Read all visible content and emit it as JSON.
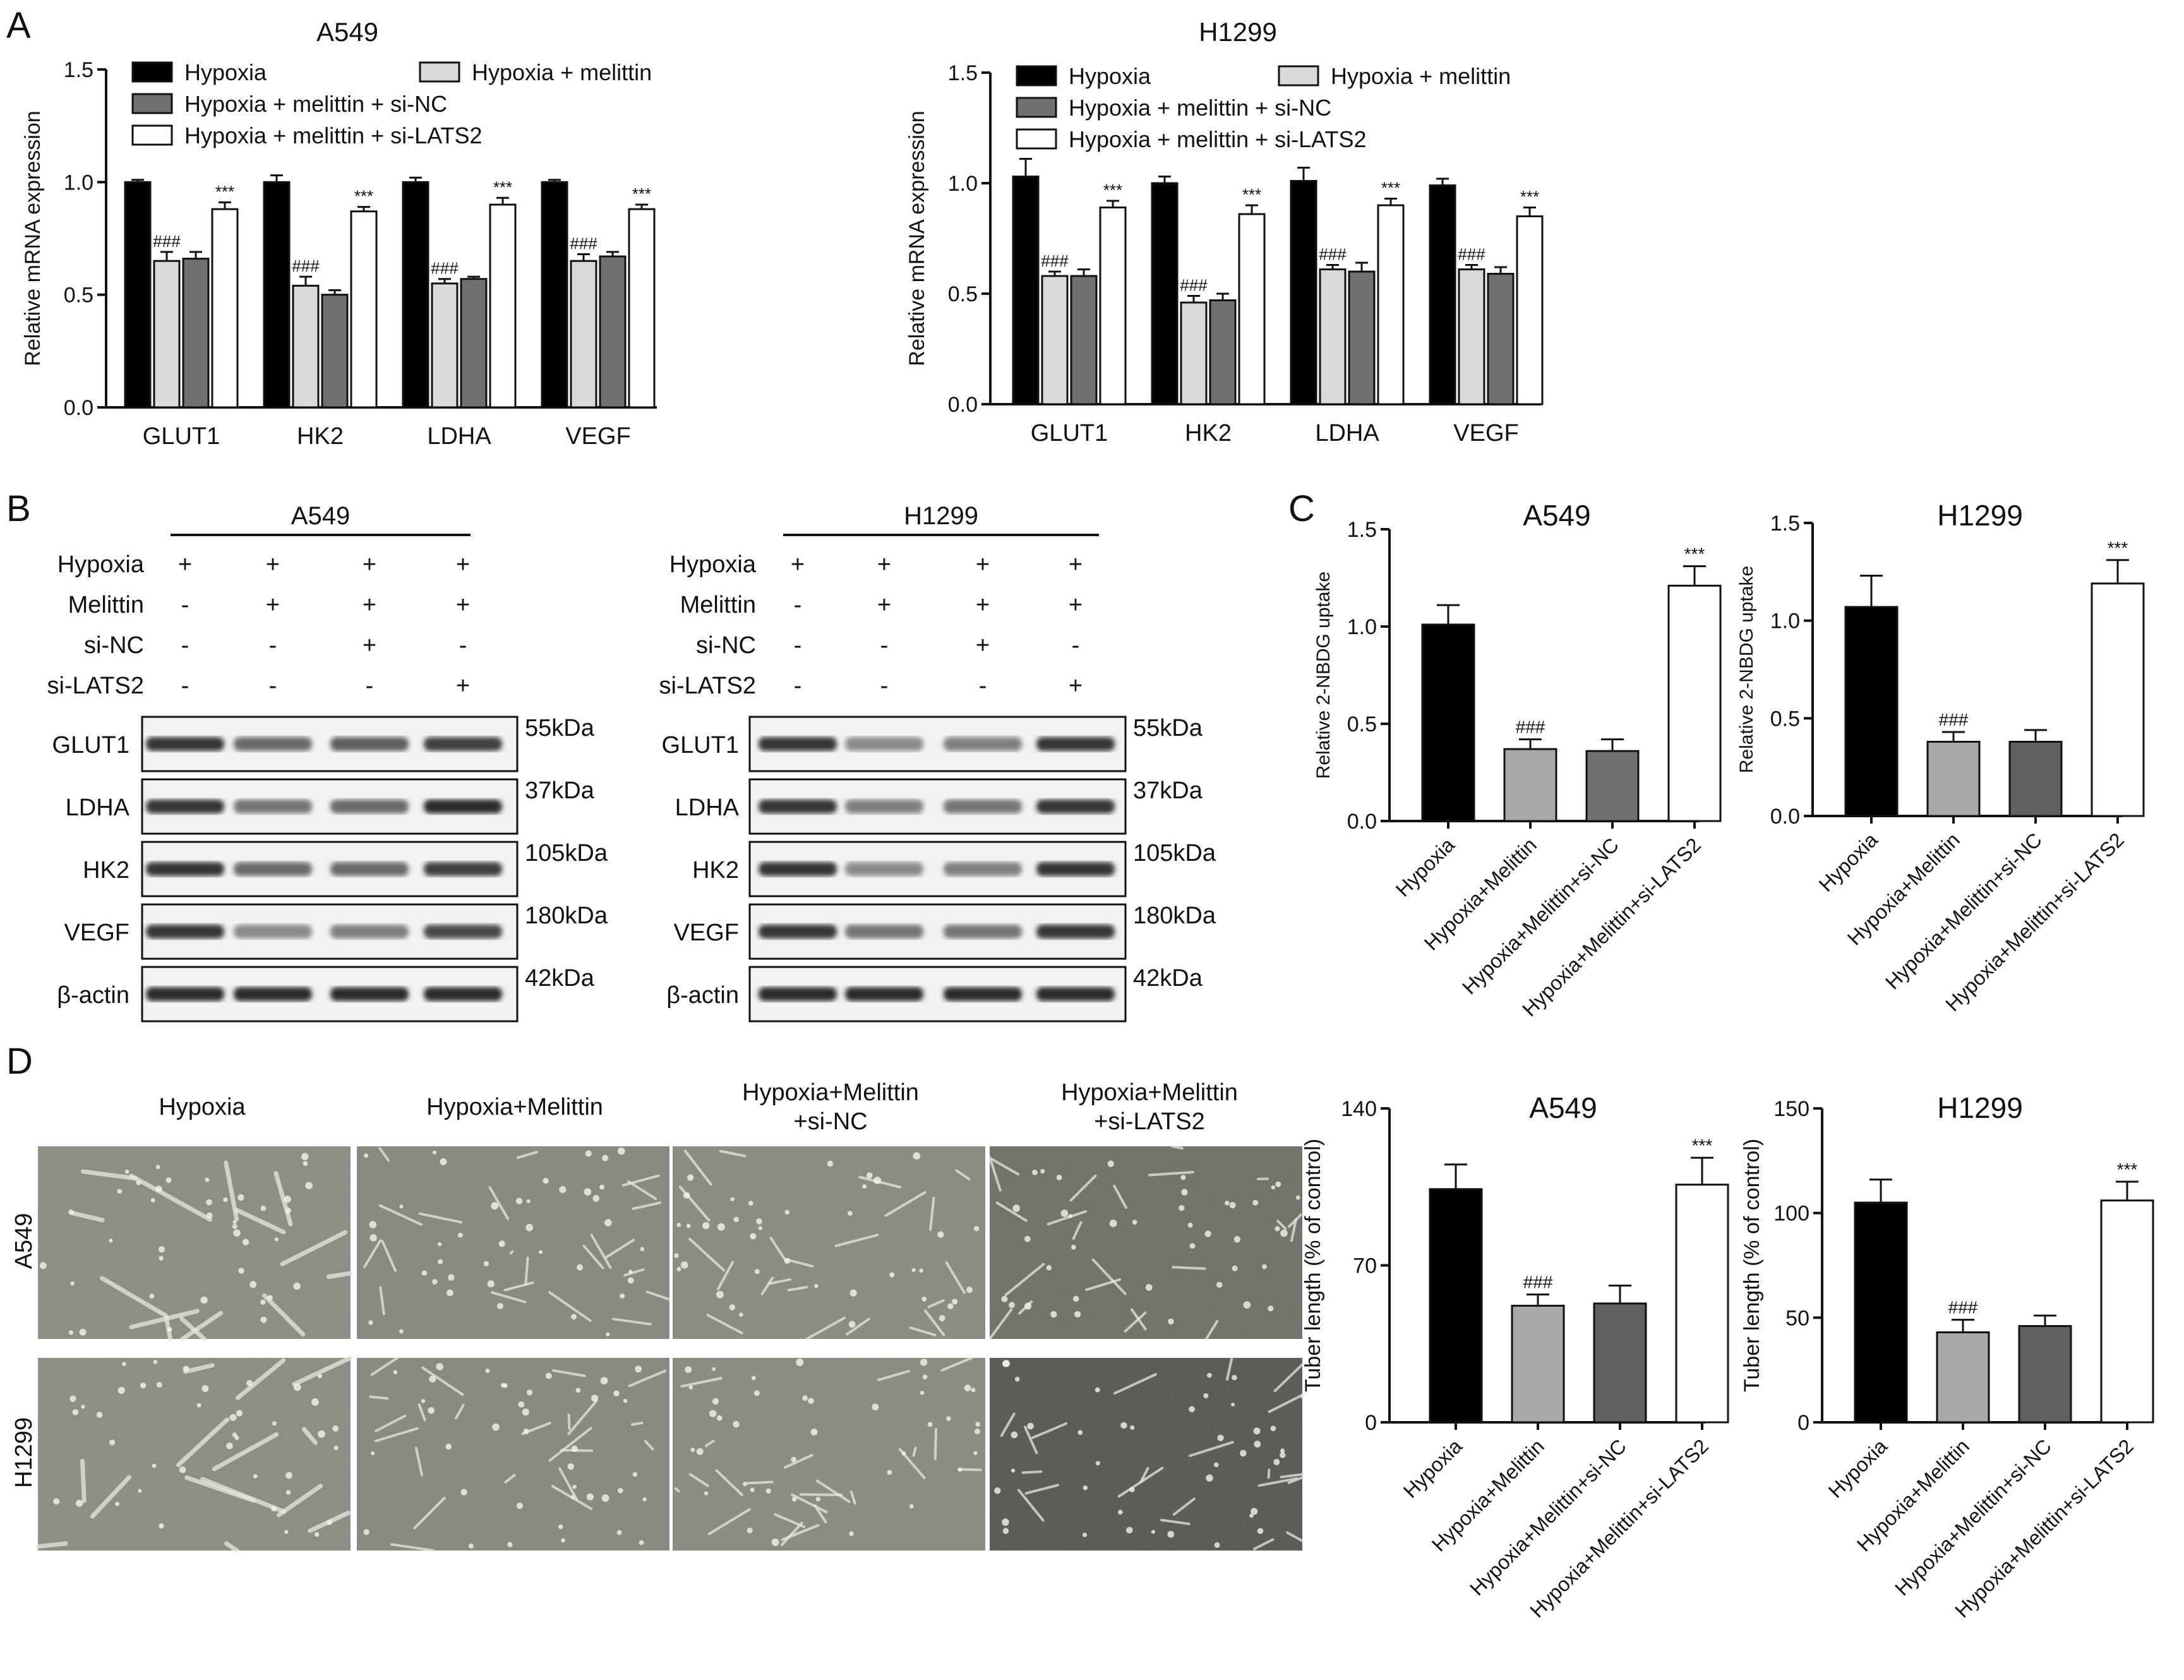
{
  "panel_letters": {
    "a": "A",
    "b": "B",
    "c": "C",
    "d": "D"
  },
  "colors": {
    "black": "#000000",
    "light_gray": "#d9d9d9",
    "mid_gray": "#a8a8a8",
    "dark_gray": "#707070",
    "dark_gray2": "#606060",
    "white": "#ffffff"
  },
  "chart_data": [
    {
      "id": "A_A549",
      "type": "bar",
      "title": "A549",
      "xlabel": "",
      "ylabel": "Relative mRNA expression",
      "ylim": [
        0,
        1.5
      ],
      "yticks": [
        "0.0",
        "0.5",
        "1.0",
        "1.5"
      ],
      "categories": [
        "GLUT1",
        "HK2",
        "LDHA",
        "VEGF"
      ],
      "legend": [
        "Hypoxia",
        "Hypoxia + melittin",
        "Hypoxia + melittin + si-NC",
        "Hypoxia + melittin + si-LATS2"
      ],
      "series": [
        {
          "name": "Hypoxia",
          "color": "#000000",
          "values": [
            1.0,
            1.0,
            1.0,
            1.0
          ],
          "errors": [
            0.01,
            0.03,
            0.02,
            0.01
          ]
        },
        {
          "name": "Hypoxia + melittin",
          "color": "#d9d9d9",
          "values": [
            0.65,
            0.54,
            0.55,
            0.65
          ],
          "errors": [
            0.04,
            0.04,
            0.02,
            0.03
          ]
        },
        {
          "name": "Hypoxia + melittin + si-NC",
          "color": "#707070",
          "values": [
            0.66,
            0.5,
            0.57,
            0.67
          ],
          "errors": [
            0.03,
            0.02,
            0.01,
            0.02
          ]
        },
        {
          "name": "Hypoxia + melittin + si-LATS2",
          "color": "#ffffff",
          "values": [
            0.88,
            0.87,
            0.9,
            0.88
          ],
          "errors": [
            0.03,
            0.02,
            0.03,
            0.02
          ]
        }
      ],
      "annotations": [
        {
          "series": 1,
          "labels": [
            "###",
            "###",
            "###",
            "###"
          ]
        },
        {
          "series": 3,
          "labels": [
            "***",
            "***",
            "***",
            "***"
          ]
        }
      ]
    },
    {
      "id": "A_H1299",
      "type": "bar",
      "title": "H1299",
      "xlabel": "",
      "ylabel": "Relative mRNA expression",
      "ylim": [
        0,
        1.5
      ],
      "yticks": [
        "0.0",
        "0.5",
        "1.0",
        "1.5"
      ],
      "categories": [
        "GLUT1",
        "HK2",
        "LDHA",
        "VEGF"
      ],
      "legend": [
        "Hypoxia",
        "Hypoxia + melittin",
        "Hypoxia + melittin + si-NC",
        "Hypoxia + melittin + si-LATS2"
      ],
      "series": [
        {
          "name": "Hypoxia",
          "color": "#000000",
          "values": [
            1.03,
            1.0,
            1.01,
            0.99
          ],
          "errors": [
            0.08,
            0.03,
            0.06,
            0.03
          ]
        },
        {
          "name": "Hypoxia + melittin",
          "color": "#d9d9d9",
          "values": [
            0.58,
            0.46,
            0.61,
            0.61
          ],
          "errors": [
            0.02,
            0.03,
            0.02,
            0.02
          ]
        },
        {
          "name": "Hypoxia + melittin + si-NC",
          "color": "#707070",
          "values": [
            0.58,
            0.47,
            0.6,
            0.59
          ],
          "errors": [
            0.03,
            0.03,
            0.04,
            0.03
          ]
        },
        {
          "name": "Hypoxia + melittin + si-LATS2",
          "color": "#ffffff",
          "values": [
            0.89,
            0.86,
            0.9,
            0.85
          ],
          "errors": [
            0.03,
            0.04,
            0.03,
            0.04
          ]
        }
      ],
      "annotations": [
        {
          "series": 1,
          "labels": [
            "###",
            "###",
            "###",
            "###"
          ]
        },
        {
          "series": 3,
          "labels": [
            "***",
            "***",
            "***",
            "***"
          ]
        }
      ]
    },
    {
      "id": "C_A549",
      "type": "bar",
      "title": "A549",
      "xlabel": "",
      "ylabel": "Relative 2-NBDG uptake",
      "ylim": [
        0,
        1.5
      ],
      "yticks": [
        "0.0",
        "0.5",
        "1.0",
        "1.5"
      ],
      "categories": [
        "Hypoxia",
        "Hypoxia+Melittin",
        "Hypoxia+Melittin+si-NC",
        "Hypoxia+Melittin+si-LATS2"
      ],
      "values": [
        1.01,
        0.37,
        0.36,
        1.21
      ],
      "errors": [
        0.1,
        0.05,
        0.06,
        0.1
      ],
      "colors": [
        "#000000",
        "#a8a8a8",
        "#707070",
        "#ffffff"
      ],
      "annotations": [
        "",
        "###",
        "",
        "***"
      ]
    },
    {
      "id": "C_H1299",
      "type": "bar",
      "title": "H1299",
      "xlabel": "",
      "ylabel": "Relative 2-NBDG uptake",
      "ylim": [
        0,
        1.5
      ],
      "yticks": [
        "0.0",
        "0.5",
        "1.0",
        "1.5"
      ],
      "categories": [
        "Hypoxia",
        "Hypoxia+Melittin",
        "Hypoxia+Melittin+si-NC",
        "Hypoxia+Melittin+si-LATS2"
      ],
      "values": [
        1.07,
        0.38,
        0.38,
        1.19
      ],
      "errors": [
        0.16,
        0.05,
        0.06,
        0.12
      ],
      "colors": [
        "#000000",
        "#a8a8a8",
        "#606060",
        "#ffffff"
      ],
      "annotations": [
        "",
        "###",
        "",
        "***"
      ]
    },
    {
      "id": "D_A549",
      "type": "bar",
      "title": "A549",
      "xlabel": "",
      "ylabel": "Tuber length (% of control)",
      "ylim": [
        0,
        140
      ],
      "yticks": [
        "0",
        "70",
        "140"
      ],
      "categories": [
        "Hypoxia",
        "Hypoxia+Melittin",
        "Hypoxia+Melittin+si-NC",
        "Hypoxia+Melittin+si-LATS2"
      ],
      "values": [
        104,
        52,
        53,
        106
      ],
      "errors": [
        11,
        5,
        8,
        12
      ],
      "colors": [
        "#000000",
        "#a8a8a8",
        "#606060",
        "#ffffff"
      ],
      "annotations": [
        "",
        "###",
        "",
        "***"
      ]
    },
    {
      "id": "D_H1299",
      "type": "bar",
      "title": "H1299",
      "xlabel": "",
      "ylabel": "Tuber length (% of control)",
      "ylim": [
        0,
        150
      ],
      "yticks": [
        "0",
        "50",
        "100",
        "150"
      ],
      "categories": [
        "Hypoxia",
        "Hypoxia+Melittin",
        "Hypoxia+Melittin+si-NC",
        "Hypoxia+Melittin+si-LATS2"
      ],
      "values": [
        105,
        43,
        46,
        106
      ],
      "errors": [
        11,
        6,
        5,
        9
      ],
      "colors": [
        "#000000",
        "#a8a8a8",
        "#606060",
        "#ffffff"
      ],
      "annotations": [
        "",
        "###",
        "",
        "***"
      ]
    }
  ],
  "western_blots": [
    {
      "title": "A549",
      "conditions": [
        {
          "label": "Hypoxia",
          "marks": [
            "+",
            "+",
            "+",
            "+"
          ]
        },
        {
          "label": "Melittin",
          "marks": [
            "-",
            "+",
            "+",
            "+"
          ]
        },
        {
          "label": "si-NC",
          "marks": [
            "-",
            "-",
            "+",
            "-"
          ]
        },
        {
          "label": "si-LATS2",
          "marks": [
            "-",
            "-",
            "-",
            "+"
          ]
        }
      ],
      "bands": [
        {
          "protein": "GLUT1",
          "size": "55kDa",
          "intensity": [
            0.85,
            0.6,
            0.65,
            0.8
          ]
        },
        {
          "protein": "LDHA",
          "size": "37kDa",
          "intensity": [
            0.85,
            0.55,
            0.6,
            0.9
          ]
        },
        {
          "protein": "HK2",
          "size": "105kDa",
          "intensity": [
            0.85,
            0.6,
            0.6,
            0.8
          ]
        },
        {
          "protein": "VEGF",
          "size": "180kDa",
          "intensity": [
            0.85,
            0.45,
            0.5,
            0.75
          ]
        },
        {
          "protein": "β-actin",
          "size": "42kDa",
          "intensity": [
            0.9,
            0.9,
            0.9,
            0.9
          ]
        }
      ]
    },
    {
      "title": "H1299",
      "conditions": [
        {
          "label": "Hypoxia",
          "marks": [
            "+",
            "+",
            "+",
            "+"
          ]
        },
        {
          "label": "Melittin",
          "marks": [
            "-",
            "+",
            "+",
            "+"
          ]
        },
        {
          "label": "si-NC",
          "marks": [
            "-",
            "-",
            "+",
            "-"
          ]
        },
        {
          "label": "si-LATS2",
          "marks": [
            "-",
            "-",
            "-",
            "+"
          ]
        }
      ],
      "bands": [
        {
          "protein": "GLUT1",
          "size": "55kDa",
          "intensity": [
            0.85,
            0.45,
            0.5,
            0.85
          ]
        },
        {
          "protein": "LDHA",
          "size": "37kDa",
          "intensity": [
            0.85,
            0.5,
            0.55,
            0.85
          ]
        },
        {
          "protein": "HK2",
          "size": "105kDa",
          "intensity": [
            0.85,
            0.45,
            0.5,
            0.85
          ]
        },
        {
          "protein": "VEGF",
          "size": "180kDa",
          "intensity": [
            0.85,
            0.55,
            0.55,
            0.85
          ]
        },
        {
          "protein": "β-actin",
          "size": "42kDa",
          "intensity": [
            0.9,
            0.9,
            0.9,
            0.9
          ]
        }
      ]
    }
  ],
  "micrographs": {
    "column_headers": [
      "Hypoxia",
      "Hypoxia+Melittin",
      "Hypoxia+Melittin\n+si-NC",
      "Hypoxia+Melittin\n+si-LATS2"
    ],
    "row_labels": [
      "A549",
      "H1299"
    ]
  }
}
